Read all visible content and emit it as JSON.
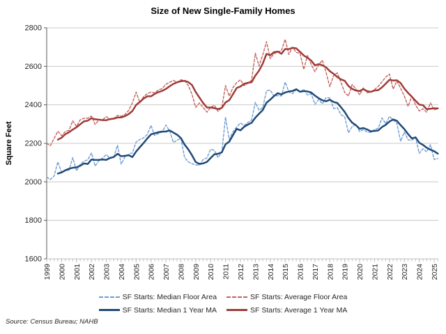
{
  "title": "Size of New Single-Family Homes",
  "source_note": "Source: Census Bureau; NAHB",
  "y_axis": {
    "label": "Square Feet",
    "ticks": [
      1600,
      1800,
      2000,
      2200,
      2400,
      2600,
      2800
    ]
  },
  "x_axis": {
    "years": [
      "1999",
      "2000",
      "2001",
      "2002",
      "2003",
      "2004",
      "2005",
      "2006",
      "2007",
      "2008",
      "2009",
      "2010",
      "2011",
      "2012",
      "2013",
      "2014",
      "2015",
      "2016",
      "2017",
      "2018",
      "2019",
      "2020",
      "2021",
      "2022",
      "2023",
      "2024",
      "2025"
    ],
    "minor_tick_unit": "quarter"
  },
  "colors": {
    "gridline": "#C9C9C9",
    "y_axis_line": "#595959",
    "x_axis_line": "#BFBFBF",
    "text": "#262626"
  },
  "chart_data": {
    "type": "line",
    "title": "Size of New Single-Family Homes",
    "xlabel": "",
    "ylabel": "Square Feet",
    "ylim": [
      1600,
      2800
    ],
    "grid": "horizontal",
    "legend_position": "bottom",
    "x_start_year": 1999,
    "x_start_quarter": 1,
    "x_step_years": 0.25,
    "series": [
      {
        "name": "SF Starts: Median Floor Area",
        "style": "dashed",
        "color": "#6C9BD2",
        "values": [
          2025,
          2012,
          2031,
          2104,
          2049,
          2057,
          2061,
          2126,
          2057,
          2091,
          2108,
          2114,
          2150,
          2082,
          2110,
          2123,
          2142,
          2122,
          2128,
          2190,
          2092,
          2130,
          2142,
          2151,
          2207,
          2220,
          2228,
          2246,
          2293,
          2241,
          2251,
          2259,
          2295,
          2264,
          2205,
          2215,
          2228,
          2127,
          2104,
          2094,
          2088,
          2086,
          2116,
          2124,
          2169,
          2164,
          2126,
          2154,
          2336,
          2220,
          2260,
          2285,
          2306,
          2292,
          2308,
          2321,
          2413,
          2372,
          2386,
          2473,
          2477,
          2445,
          2448,
          2446,
          2518,
          2467,
          2458,
          2481,
          2466,
          2481,
          2451,
          2457,
          2403,
          2428,
          2405,
          2437,
          2436,
          2381,
          2385,
          2349,
          2337,
          2255,
          2288,
          2298,
          2261,
          2271,
          2259,
          2257,
          2272,
          2279,
          2332,
          2302,
          2340,
          2322,
          2304,
          2211,
          2259,
          2218,
          2216,
          2231,
          2148,
          2172,
          2156,
          2193,
          2116,
          2121
        ]
      },
      {
        "name": "SF Starts: Average Floor Area",
        "style": "dashed",
        "color": "#C2605C",
        "values": [
          2200,
          2188,
          2226,
          2263,
          2240,
          2261,
          2268,
          2317,
          2288,
          2322,
          2330,
          2330,
          2342,
          2298,
          2321,
          2322,
          2339,
          2323,
          2329,
          2345,
          2341,
          2350,
          2371,
          2410,
          2466,
          2412,
          2442,
          2458,
          2466,
          2462,
          2478,
          2484,
          2507,
          2517,
          2527,
          2517,
          2530,
          2526,
          2500,
          2455,
          2386,
          2410,
          2386,
          2362,
          2386,
          2398,
          2366,
          2386,
          2500,
          2445,
          2490,
          2516,
          2530,
          2500,
          2512,
          2528,
          2668,
          2602,
          2660,
          2728,
          2640,
          2666,
          2673,
          2682,
          2740,
          2662,
          2700,
          2672,
          2668,
          2584,
          2656,
          2610,
          2572,
          2608,
          2632,
          2566,
          2494,
          2552,
          2566,
          2516,
          2464,
          2446,
          2506,
          2482,
          2452,
          2488,
          2462,
          2468,
          2480,
          2496,
          2520,
          2544,
          2560,
          2482,
          2524,
          2486,
          2446,
          2392,
          2446,
          2400,
          2368,
          2380,
          2362,
          2410,
          2374,
          2380
        ]
      },
      {
        "name": "SF Starts: Median 1 Year MA",
        "style": "solid",
        "color": "#1F4977",
        "derived_from": "SF Starts: Median Floor Area",
        "ma_window_quarters": 4
      },
      {
        "name": "SF Starts: Average 1 Year MA",
        "style": "solid",
        "color": "#9E3B38",
        "derived_from": "SF Starts: Average Floor Area",
        "ma_window_quarters": 4
      }
    ]
  }
}
